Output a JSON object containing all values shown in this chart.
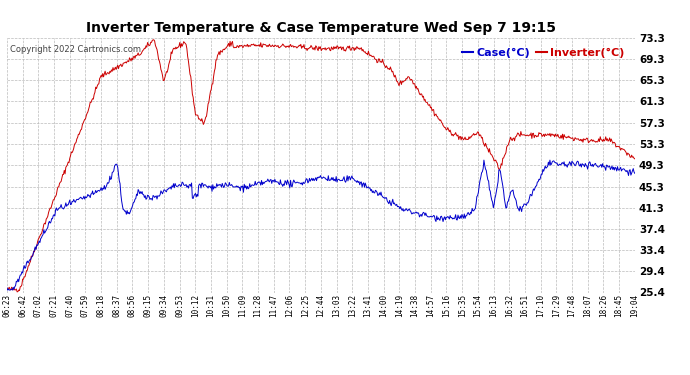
{
  "title": "Inverter Temperature & Case Temperature Wed Sep 7 19:15",
  "copyright": "Copyright 2022 Cartronics.com",
  "legend_case": "Case(°C)",
  "legend_inverter": "Inverter(°C)",
  "ylabel_right_ticks": [
    73.3,
    69.3,
    65.3,
    61.3,
    57.3,
    53.3,
    49.3,
    45.3,
    41.3,
    37.4,
    33.4,
    29.4,
    25.4
  ],
  "ylim": [
    25.4,
    73.3
  ],
  "bg_color": "#ffffff",
  "grid_color": "#bbbbbb",
  "inverter_color": "#cc0000",
  "case_color": "#0000cc",
  "x_labels": [
    "06:23",
    "06:42",
    "07:02",
    "07:21",
    "07:40",
    "07:59",
    "08:18",
    "08:37",
    "08:56",
    "09:15",
    "09:34",
    "09:53",
    "10:12",
    "10:31",
    "10:50",
    "11:09",
    "11:28",
    "11:47",
    "12:06",
    "12:25",
    "12:44",
    "13:03",
    "13:22",
    "13:41",
    "14:00",
    "14:19",
    "14:38",
    "14:57",
    "15:16",
    "15:35",
    "15:54",
    "16:13",
    "16:32",
    "16:51",
    "17:10",
    "17:29",
    "17:48",
    "18:07",
    "18:26",
    "18:45",
    "19:04"
  ]
}
